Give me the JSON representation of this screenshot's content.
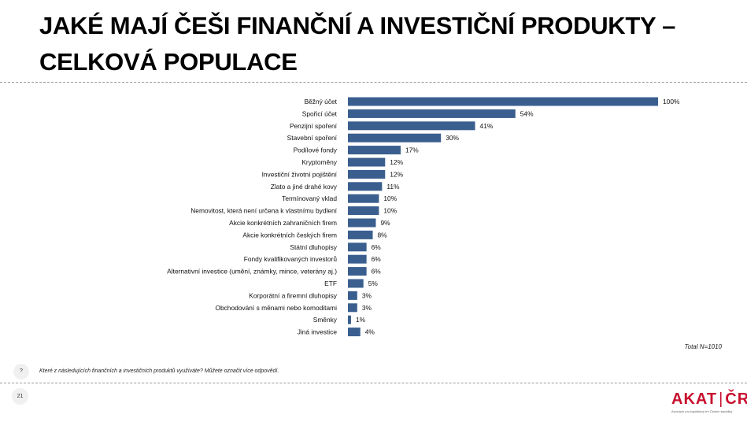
{
  "title": "JAKÉ MAJÍ ČEŠI FINANČNÍ A INVESTIČNÍ PRODUKTY – CELKOVÁ POPULACE",
  "total_note": "Total N=1010",
  "question_icon": "?",
  "question": "Které z následujících finančních a investičních produktů využíváte? Můžete označit více odpovědí.",
  "page_number": "21",
  "logo": {
    "left": "AKAT",
    "right": "ČR",
    "tagline": "Asociace pro kapitálový trh České republiky",
    "color": "#c8102e"
  },
  "chart_data": {
    "type": "bar",
    "orientation": "horizontal",
    "title": "",
    "xlabel": "",
    "ylabel": "",
    "xlim": [
      0,
      100
    ],
    "unit": "%",
    "bar_color": "#3a5f8f",
    "grid": false,
    "categories": [
      "Běžný účet",
      "Spořicí účet",
      "Penzijní spoření",
      "Stavební spoření",
      "Podílové fondy",
      "Kryptoměny",
      "Investiční životní pojištění",
      "Zlato a jiné drahé kovy",
      "Termínovaný vklad",
      "Nemovitost, která není určena k vlastnímu bydlení",
      "Akcie konkrétních zahraničních firem",
      "Akcie konkrétních českých firem",
      "Státní dluhopisy",
      "Fondy kvalifikovaných investorů",
      "Alternativní investice (umění, známky, mince, veterány aj.)",
      "ETF",
      "Korporátní a firemní dluhopisy",
      "Obchodování s měnami nebo komoditami",
      "Směnky",
      "Jiná investice"
    ],
    "values": [
      100,
      54,
      41,
      30,
      17,
      12,
      12,
      11,
      10,
      10,
      9,
      8,
      6,
      6,
      6,
      5,
      3,
      3,
      1,
      4
    ]
  }
}
